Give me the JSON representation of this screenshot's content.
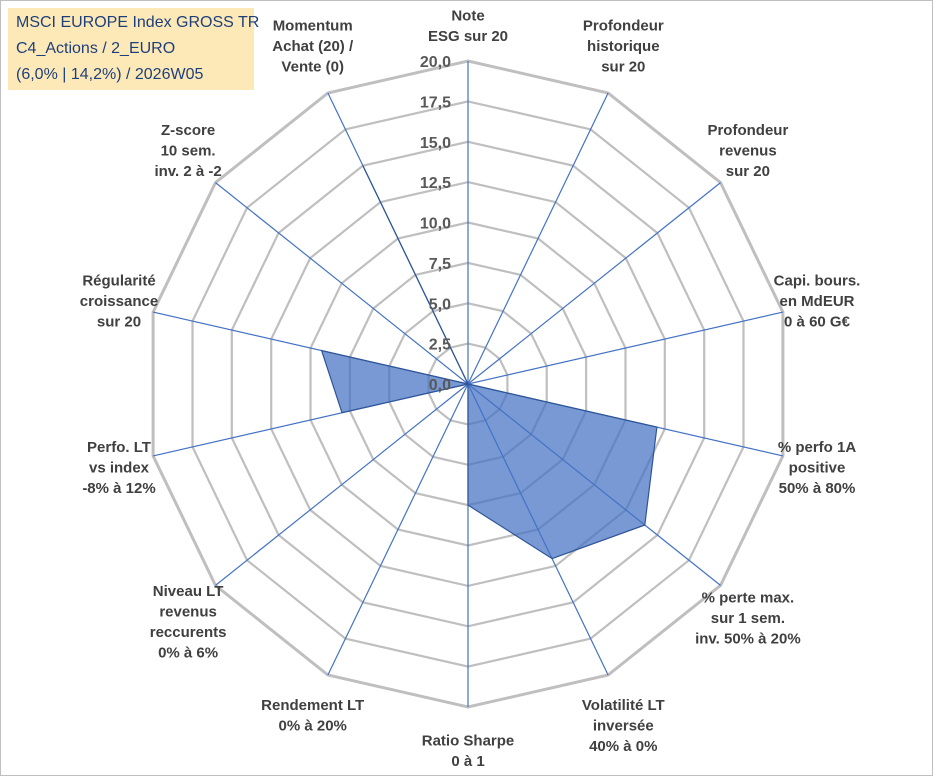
{
  "chart_data": {
    "type": "radar",
    "title_lines": [
      "MSCI EUROPE Index GROSS TR",
      "C4_Actions / 2_EURO",
      "(6,0% | 14,2%) / 2026W05"
    ],
    "axes": [
      [
        "Note",
        "ESG sur 20"
      ],
      [
        "Profondeur",
        "historique",
        "sur 20"
      ],
      [
        "Profondeur",
        "revenus",
        "sur 20"
      ],
      [
        "Capi. bours.",
        "en MdEUR",
        "0 à 60 G€"
      ],
      [
        "% perfo 1A",
        "positive",
        "50% à 80%"
      ],
      [
        "% perte max.",
        "sur 1 sem.",
        "inv. 50% à 20%"
      ],
      [
        "Volatilité LT",
        "inversée",
        "40% à 0%"
      ],
      [
        "Ratio Sharpe",
        "0 à 1"
      ],
      [
        "Rendement LT",
        "0% à 20%"
      ],
      [
        "Niveau LT",
        "revenus",
        "reccurents",
        "0% à 6%"
      ],
      [
        "Perfo. LT",
        "vs index",
        "-8% à 12%"
      ],
      [
        "Régularité",
        "croissance",
        "sur 20"
      ],
      [
        "Z-score",
        "10 sem.",
        "inv. 2 à -2"
      ],
      [
        "Momentum",
        "Achat (20) /",
        "Vente (0)"
      ]
    ],
    "values": [
      0.0,
      0.0,
      0.0,
      0.0,
      12.0,
      14.0,
      12.0,
      7.5,
      0.0,
      0.0,
      8.0,
      9.3,
      0.0,
      15.0
    ],
    "rlim": [
      0,
      20
    ],
    "r_ticks": [
      "0,0",
      "2,5",
      "5,0",
      "7,5",
      "10,0",
      "12,5",
      "15,0",
      "17,5",
      "20,0"
    ],
    "grid": true,
    "legend": "none",
    "colors": {
      "fill": "#4472c4",
      "fill_opacity": 0.72,
      "outline": "#2f5597",
      "grid": "#bfbfbf",
      "spokes": "#4472c4",
      "label": "#404040",
      "tick": "#595959",
      "title_bg": "#fde9b8",
      "title_text": "#1f3f7a"
    }
  }
}
